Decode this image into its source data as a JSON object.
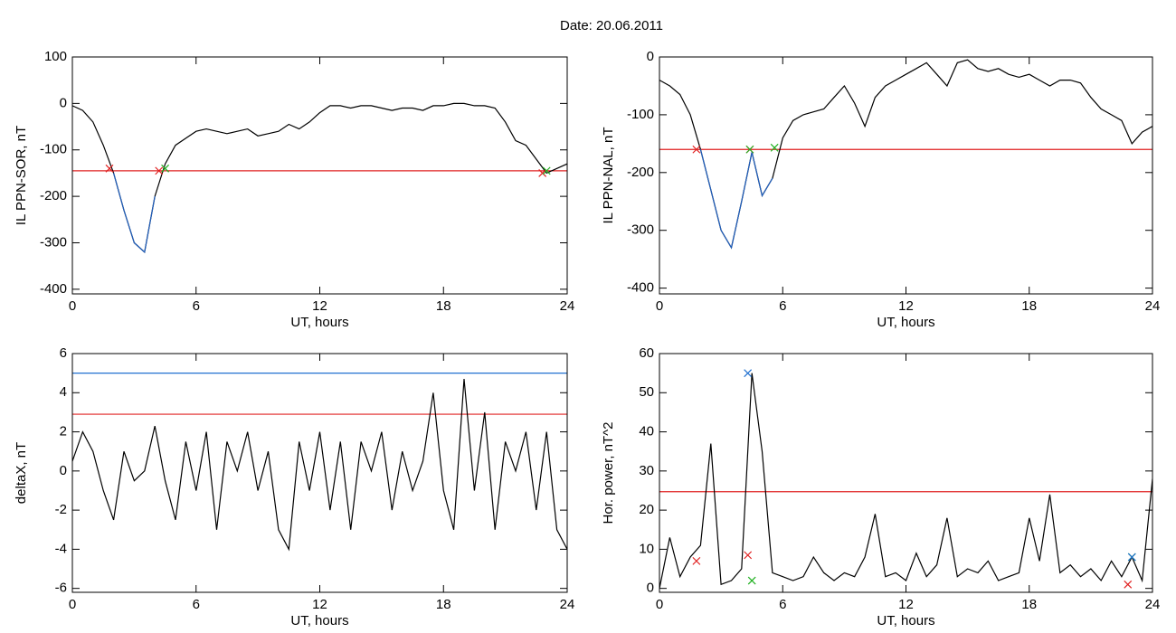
{
  "title": "Date:  20.06.2011",
  "chart_data": [
    {
      "type": "line",
      "ylabel": "IL PPN-SOR, nT",
      "xlabel": "UT, hours",
      "xlim": [
        0,
        24
      ],
      "xticks": [
        0,
        6,
        12,
        18,
        24
      ],
      "ylim": [
        -410,
        100
      ],
      "yticks": [
        -400,
        -300,
        -200,
        -100,
        0,
        100
      ],
      "x": [
        0,
        0.5,
        1,
        1.5,
        2,
        2.5,
        3,
        3.5,
        4,
        4.5,
        5,
        5.5,
        6,
        6.5,
        7,
        7.5,
        8,
        8.5,
        9,
        9.5,
        10,
        10.5,
        11,
        11.5,
        12,
        12.5,
        13,
        13.5,
        14,
        14.5,
        15,
        15.5,
        16,
        16.5,
        17,
        17.5,
        18,
        18.5,
        19,
        19.5,
        20,
        20.5,
        21,
        21.5,
        22,
        22.5,
        23,
        23.5,
        24
      ],
      "series": [
        {
          "color": "#000000",
          "values": [
            -5,
            -15,
            -40,
            -90,
            -150,
            -230,
            -300,
            -320,
            -200,
            -130,
            -90,
            -75,
            -60,
            -55,
            -60,
            -65,
            -60,
            -55,
            -70,
            -65,
            -60,
            -45,
            -55,
            -40,
            -20,
            -5,
            -5,
            -10,
            -5,
            -5,
            -10,
            -15,
            -10,
            -10,
            -15,
            -5,
            -5,
            0,
            0,
            -5,
            -5,
            -10,
            -40,
            -80,
            -90,
            -120,
            -150,
            -140,
            -130
          ]
        },
        {
          "color": "#1f5fbf",
          "values": [
            null,
            null,
            null,
            null,
            -150,
            -230,
            -300,
            -320,
            -200,
            null,
            null,
            null,
            null,
            null,
            null,
            null,
            null,
            null,
            null,
            null,
            null,
            null,
            null,
            null,
            null,
            null,
            null,
            null,
            null,
            null,
            null,
            null,
            null,
            null,
            null,
            null,
            null,
            null,
            null,
            null,
            null,
            null,
            null,
            null,
            null,
            null,
            null,
            null,
            null
          ]
        }
      ],
      "hlines": [
        {
          "value": -145,
          "color": "#e02020"
        }
      ],
      "markers": [
        {
          "x": 1.8,
          "y": -140,
          "color": "#e02020"
        },
        {
          "x": 4.2,
          "y": -145,
          "color": "#e02020"
        },
        {
          "x": 4.5,
          "y": -140,
          "color": "#20b020"
        },
        {
          "x": 22.8,
          "y": -150,
          "color": "#e02020"
        },
        {
          "x": 23.0,
          "y": -145,
          "color": "#20b020"
        }
      ]
    },
    {
      "type": "line",
      "ylabel": "IL PPN-NAL, nT",
      "xlabel": "UT, hours",
      "xlim": [
        0,
        24
      ],
      "xticks": [
        0,
        6,
        12,
        18,
        24
      ],
      "ylim": [
        -410,
        0
      ],
      "yticks": [
        -400,
        -300,
        -200,
        -100,
        0
      ],
      "x": [
        0,
        0.5,
        1,
        1.5,
        2,
        2.5,
        3,
        3.5,
        4,
        4.5,
        5,
        5.5,
        6,
        6.5,
        7,
        7.5,
        8,
        8.5,
        9,
        9.5,
        10,
        10.5,
        11,
        11.5,
        12,
        12.5,
        13,
        13.5,
        14,
        14.5,
        15,
        15.5,
        16,
        16.5,
        17,
        17.5,
        18,
        18.5,
        19,
        19.5,
        20,
        20.5,
        21,
        21.5,
        22,
        22.5,
        23,
        23.5,
        24
      ],
      "series": [
        {
          "color": "#000000",
          "values": [
            -40,
            -50,
            -65,
            -100,
            -160,
            -230,
            -300,
            -330,
            -250,
            -165,
            -240,
            -210,
            -140,
            -110,
            -100,
            -95,
            -90,
            -70,
            -50,
            -80,
            -120,
            -70,
            -50,
            -40,
            -30,
            -20,
            -10,
            -30,
            -50,
            -10,
            -5,
            -20,
            -25,
            -20,
            -30,
            -35,
            -30,
            -40,
            -50,
            -40,
            -40,
            -45,
            -70,
            -90,
            -100,
            -110,
            -150,
            -130,
            -120
          ]
        },
        {
          "color": "#1f5fbf",
          "values": [
            null,
            null,
            null,
            null,
            -160,
            -230,
            -300,
            -330,
            -250,
            -165,
            -240,
            -210,
            null,
            null,
            null,
            null,
            null,
            null,
            null,
            null,
            null,
            null,
            null,
            null,
            null,
            null,
            null,
            null,
            null,
            null,
            null,
            null,
            null,
            null,
            null,
            null,
            null,
            null,
            null,
            null,
            null,
            null,
            null,
            null,
            null,
            null,
            null,
            null,
            null
          ]
        }
      ],
      "hlines": [
        {
          "value": -160,
          "color": "#e02020"
        }
      ],
      "markers": [
        {
          "x": 1.8,
          "y": -160,
          "color": "#e02020"
        },
        {
          "x": 4.4,
          "y": -160,
          "color": "#e02020"
        },
        {
          "x": 4.4,
          "y": -160,
          "color": "#20b020"
        },
        {
          "x": 5.6,
          "y": -157,
          "color": "#20b020"
        }
      ]
    },
    {
      "type": "line",
      "ylabel": "deltaX, nT",
      "xlabel": "UT, hours",
      "xlim": [
        0,
        24
      ],
      "xticks": [
        0,
        6,
        12,
        18,
        24
      ],
      "ylim": [
        -6.2,
        6
      ],
      "yticks": [
        -6,
        -4,
        -2,
        0,
        2,
        4,
        6
      ],
      "x": [
        0,
        0.5,
        1,
        1.5,
        2,
        2.5,
        3,
        3.5,
        4,
        4.5,
        5,
        5.5,
        6,
        6.5,
        7,
        7.5,
        8,
        8.5,
        9,
        9.5,
        10,
        10.5,
        11,
        11.5,
        12,
        12.5,
        13,
        13.5,
        14,
        14.5,
        15,
        15.5,
        16,
        16.5,
        17,
        17.5,
        18,
        18.5,
        19,
        19.5,
        20,
        20.5,
        21,
        21.5,
        22,
        22.5,
        23,
        23.5,
        24
      ],
      "series": [
        {
          "color": "#000000",
          "values": [
            0.5,
            2,
            1,
            -1,
            -2.5,
            1,
            -0.5,
            0,
            2.3,
            -0.5,
            -2.5,
            1.5,
            -1,
            2,
            -3,
            1.5,
            0,
            2,
            -1,
            1,
            -3,
            -4,
            1.5,
            -1,
            2,
            -2,
            1.5,
            -3,
            1.5,
            0,
            2,
            -2,
            1,
            -1,
            0.5,
            4,
            -1,
            -3,
            4.7,
            -1,
            3,
            -3,
            1.5,
            0,
            2,
            -2,
            2,
            -3,
            -4
          ]
        }
      ],
      "hlines": [
        {
          "value": 5,
          "color": "#2070d0"
        },
        {
          "value": 2.9,
          "color": "#e02020"
        }
      ],
      "markers": []
    },
    {
      "type": "line",
      "ylabel": "Hor. power, nT^2",
      "xlabel": "UT, hours",
      "xlim": [
        0,
        24
      ],
      "xticks": [
        0,
        6,
        12,
        18,
        24
      ],
      "ylim": [
        -1,
        60
      ],
      "yticks": [
        0,
        10,
        20,
        30,
        40,
        50,
        60
      ],
      "x": [
        0,
        0.5,
        1,
        1.5,
        2,
        2.5,
        3,
        3.5,
        4,
        4.5,
        5,
        5.5,
        6,
        6.5,
        7,
        7.5,
        8,
        8.5,
        9,
        9.5,
        10,
        10.5,
        11,
        11.5,
        12,
        12.5,
        13,
        13.5,
        14,
        14.5,
        15,
        15.5,
        16,
        16.5,
        17,
        17.5,
        18,
        18.5,
        19,
        19.5,
        20,
        20.5,
        21,
        21.5,
        22,
        22.5,
        23,
        23.5,
        24
      ],
      "series": [
        {
          "color": "#000000",
          "values": [
            0,
            13,
            3,
            8,
            11,
            37,
            1,
            2,
            5,
            55,
            35,
            4,
            3,
            2,
            3,
            8,
            4,
            2,
            4,
            3,
            8,
            19,
            3,
            4,
            2,
            9,
            3,
            6,
            18,
            3,
            5,
            4,
            7,
            2,
            3,
            4,
            18,
            7,
            24,
            4,
            6,
            3,
            5,
            2,
            7,
            3,
            8,
            2,
            28
          ]
        }
      ],
      "hlines": [
        {
          "value": 24.7,
          "color": "#e02020"
        }
      ],
      "markers": [
        {
          "x": 1.8,
          "y": 7,
          "color": "#e02020"
        },
        {
          "x": 4.3,
          "y": 8.5,
          "color": "#e02020"
        },
        {
          "x": 4.3,
          "y": 55,
          "color": "#2070d0"
        },
        {
          "x": 4.5,
          "y": 2,
          "color": "#20b020"
        },
        {
          "x": 22.8,
          "y": 1,
          "color": "#e02020"
        },
        {
          "x": 23.0,
          "y": 8,
          "color": "#20b020"
        },
        {
          "x": 23.0,
          "y": 8,
          "color": "#2070d0"
        }
      ]
    }
  ]
}
